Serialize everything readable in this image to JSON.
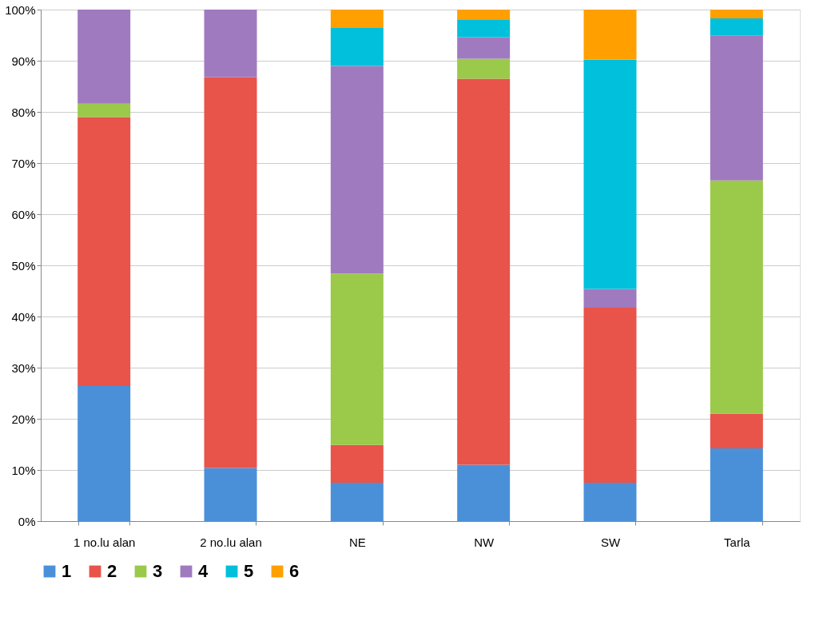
{
  "chart_data": {
    "type": "bar",
    "stacked": true,
    "categories": [
      "1 no.lu alan",
      "2 no.lu alan",
      "NE",
      "NW",
      "SW",
      "Tarla"
    ],
    "series": [
      {
        "name": "1",
        "color": "#4a90d9",
        "values": [
          26.4,
          10.4,
          7.5,
          11.0,
          7.5,
          14.2
        ]
      },
      {
        "name": "2",
        "color": "#e8534a",
        "values": [
          52.6,
          76.4,
          7.4,
          75.5,
          34.2,
          6.8
        ]
      },
      {
        "name": "3",
        "color": "#9bc94a",
        "values": [
          2.6,
          null,
          33.5,
          3.9,
          null,
          45.6
        ]
      },
      {
        "name": "4",
        "color": "#a07abf",
        "values": [
          18.4,
          13.2,
          40.6,
          4.2,
          3.7,
          28.3
        ]
      },
      {
        "name": "5",
        "color": "#00c0dc",
        "values": [
          null,
          null,
          7.4,
          3.5,
          44.8,
          3.4
        ]
      },
      {
        "name": "6",
        "color": "#ffa000",
        "values": [
          null,
          null,
          3.6,
          1.9,
          9.8,
          1.7
        ]
      }
    ],
    "ylim": [
      0,
      100
    ],
    "yticks": [
      {
        "value": 0,
        "label": "0%"
      },
      {
        "value": 10,
        "label": "10%"
      },
      {
        "value": 20,
        "label": "20%"
      },
      {
        "value": 30,
        "label": "30%"
      },
      {
        "value": 40,
        "label": "40%"
      },
      {
        "value": 50,
        "label": "50%"
      },
      {
        "value": 60,
        "label": "60%"
      },
      {
        "value": 70,
        "label": "70%"
      },
      {
        "value": 80,
        "label": "80%"
      },
      {
        "value": 90,
        "label": "90%"
      },
      {
        "value": 100,
        "label": "100%"
      }
    ],
    "grid": "y",
    "legend": "bottom"
  }
}
